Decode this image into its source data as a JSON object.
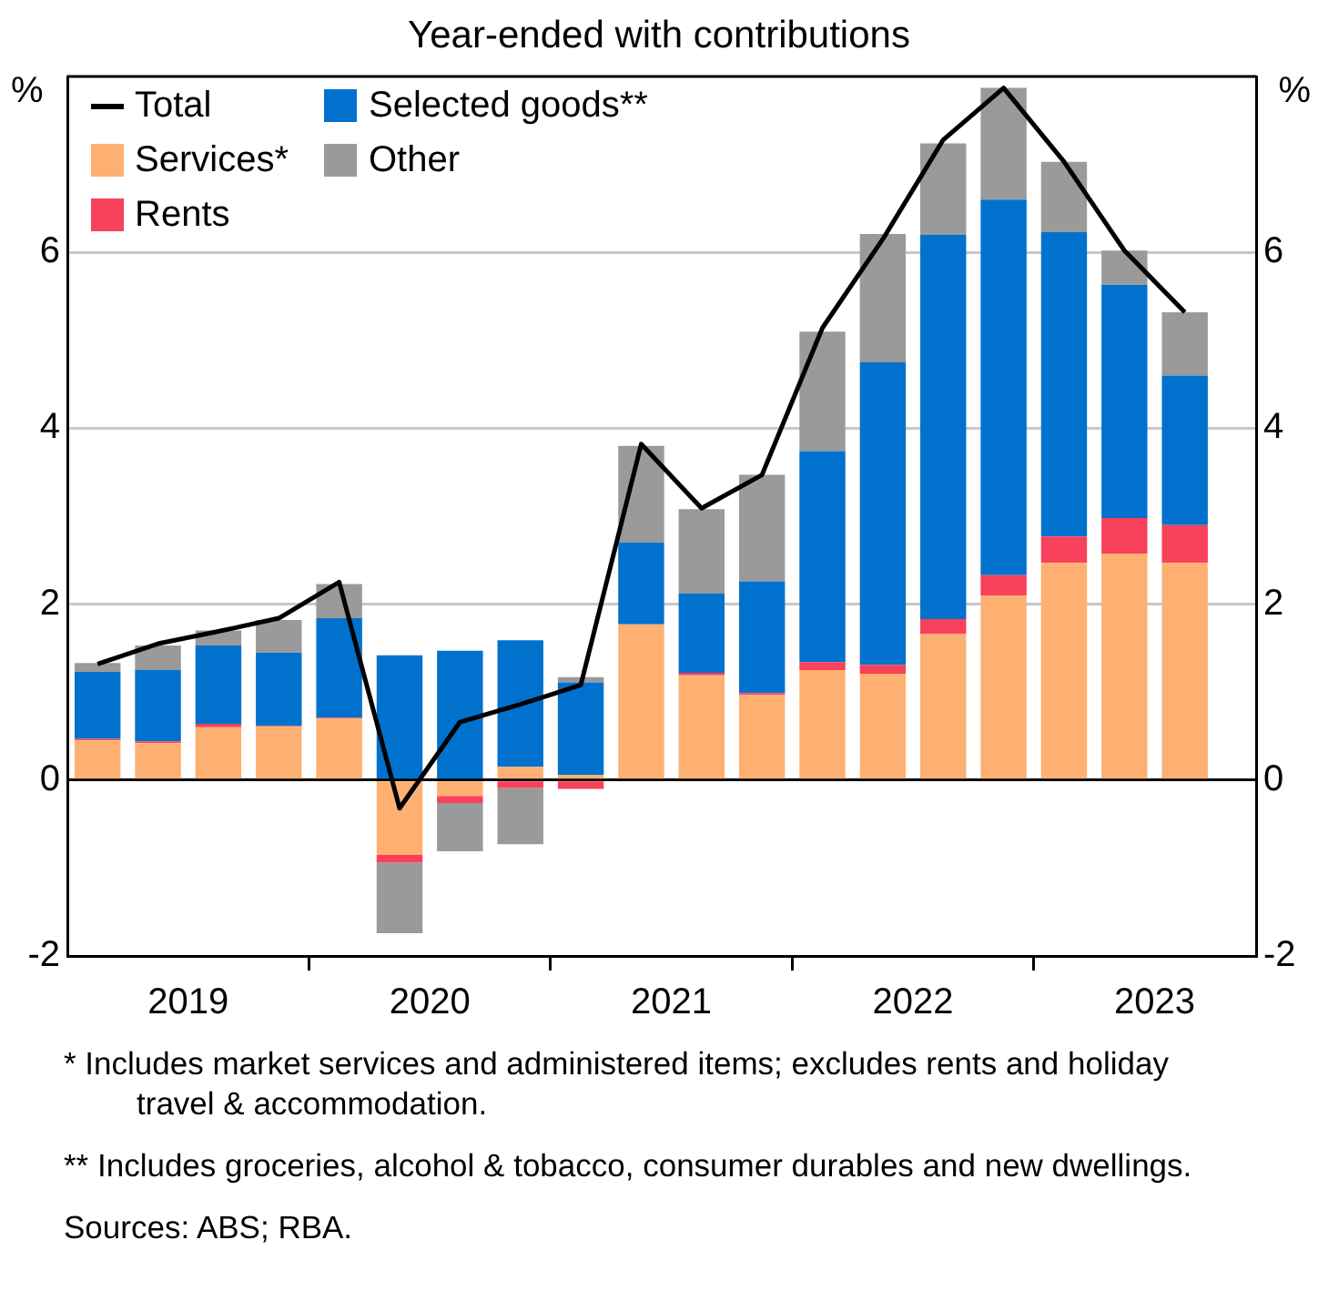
{
  "chart_data": {
    "type": "bar",
    "title": "Year-ended with contributions",
    "ylabel": "%",
    "y2label": "%",
    "x": [
      2019.125,
      2019.375,
      2019.625,
      2019.875,
      2020.125,
      2020.375,
      2020.625,
      2020.875,
      2021.125,
      2021.375,
      2021.625,
      2021.875,
      2022.125,
      2022.375,
      2022.625,
      2022.875,
      2023.125,
      2023.375,
      2023.625
    ],
    "xlim": [
      2019,
      2023.92
    ],
    "xticks": [
      {
        "value": 2019.5,
        "label": "2019"
      },
      {
        "value": 2020,
        "label": null
      },
      {
        "value": 2020.5,
        "label": "2020"
      },
      {
        "value": 2021,
        "label": null
      },
      {
        "value": 2021.5,
        "label": "2021"
      },
      {
        "value": 2022,
        "label": null
      },
      {
        "value": 2022.5,
        "label": "2022"
      },
      {
        "value": 2023,
        "label": null
      },
      {
        "value": 2023.5,
        "label": "2023"
      }
    ],
    "ylim": [
      -2,
      8
    ],
    "yticks": [
      -2,
      0,
      2,
      4,
      6
    ],
    "y2lim": [
      -2,
      8
    ],
    "y2ticks": [
      -2,
      0,
      2,
      4,
      6
    ],
    "stacked": true,
    "grid": "y",
    "legend": "top left",
    "marker": "none",
    "series": [
      {
        "name": "Total",
        "type": "line",
        "color": "#000000",
        "values": [
          1.32,
          1.55,
          1.69,
          1.84,
          2.25,
          -0.32,
          0.66,
          0.86,
          1.08,
          3.82,
          3.09,
          3.47,
          5.14,
          6.15,
          7.28,
          7.87,
          7.03,
          6.02,
          5.32
        ]
      },
      {
        "name": "Services*",
        "color": "#fdb072",
        "values": [
          0.45,
          0.42,
          0.6,
          0.61,
          0.7,
          -0.85,
          -0.18,
          0.15,
          0.06,
          1.77,
          1.19,
          0.97,
          1.25,
          1.21,
          1.66,
          2.1,
          2.47,
          2.57,
          2.47
        ]
      },
      {
        "name": "Rents",
        "color": "#f8415a",
        "values": [
          0.02,
          0.02,
          0.04,
          0.01,
          0.01,
          -0.09,
          -0.08,
          -0.09,
          -0.1,
          0,
          0.03,
          0.02,
          0.09,
          0.1,
          0.17,
          0.23,
          0.3,
          0.41,
          0.43
        ]
      },
      {
        "name": "Selected goods**",
        "color": "#0072ce",
        "values": [
          0.76,
          0.81,
          0.89,
          0.83,
          1.13,
          1.42,
          1.47,
          1.44,
          1.05,
          0.93,
          0.9,
          1.27,
          2.4,
          3.44,
          4.37,
          4.27,
          3.46,
          2.65,
          1.7
        ]
      },
      {
        "name": "Other",
        "color": "#9a9a9a",
        "values": [
          0.1,
          0.28,
          0.17,
          0.37,
          0.39,
          -0.8,
          -0.55,
          -0.64,
          0.06,
          1.1,
          0.96,
          1.21,
          1.36,
          1.46,
          1.04,
          1.27,
          0.8,
          0.39,
          0.72
        ]
      }
    ],
    "annotations": [
      "* Includes market services and administered items; excludes rents and holiday travel & accommodation.",
      "** Includes groceries, alcohol & tobacco, consumer durables and new dwellings.",
      "Sources: ABS; RBA."
    ]
  }
}
